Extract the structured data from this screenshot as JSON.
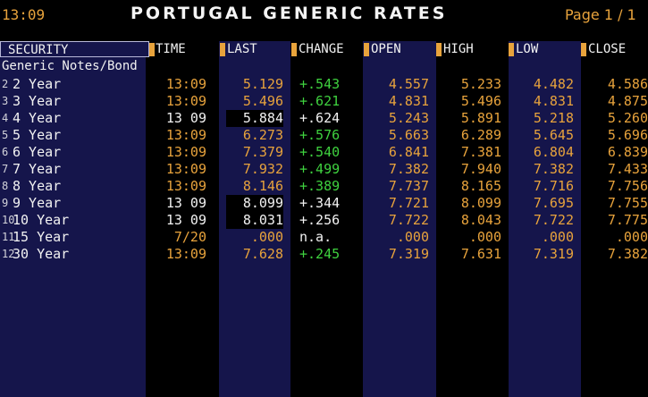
{
  "header": {
    "time": "13:09",
    "title": "PORTUGAL GENERIC RATES",
    "page": "Page 1 / 1"
  },
  "columns": [
    "SECURITY",
    "TIME",
    "LAST",
    "CHANGE",
    "OPEN",
    "HIGH",
    "LOW",
    "CLOSE"
  ],
  "group_label": "Generic Notes/Bond",
  "rows": [
    {
      "num": "2",
      "security": "2 Year",
      "time": "13:09",
      "last": "5.129",
      "change": "+.543",
      "open": "4.557",
      "high": "5.233",
      "low": "4.482",
      "close": "4.586",
      "time_color": "y",
      "last_color": "y",
      "change_color": "g",
      "last_black": false
    },
    {
      "num": "3",
      "security": "3 Year",
      "time": "13:09",
      "last": "5.496",
      "change": "+.621",
      "open": "4.831",
      "high": "5.496",
      "low": "4.831",
      "close": "4.875",
      "time_color": "y",
      "last_color": "y",
      "change_color": "g",
      "last_black": false
    },
    {
      "num": "4",
      "security": "4 Year",
      "time": "13 09",
      "last": "5.884",
      "change": "+.624",
      "open": "5.243",
      "high": "5.891",
      "low": "5.218",
      "close": "5.260",
      "time_color": "w",
      "last_color": "w",
      "change_color": "w",
      "last_black": true
    },
    {
      "num": "5",
      "security": "5 Year",
      "time": "13:09",
      "last": "6.273",
      "change": "+.576",
      "open": "5.663",
      "high": "6.289",
      "low": "5.645",
      "close": "5.696",
      "time_color": "y",
      "last_color": "y",
      "change_color": "g",
      "last_black": false
    },
    {
      "num": "6",
      "security": "6 Year",
      "time": "13:09",
      "last": "7.379",
      "change": "+.540",
      "open": "6.841",
      "high": "7.381",
      "low": "6.804",
      "close": "6.839",
      "time_color": "y",
      "last_color": "y",
      "change_color": "g",
      "last_black": false
    },
    {
      "num": "7",
      "security": "7 Year",
      "time": "13:09",
      "last": "7.932",
      "change": "+.499",
      "open": "7.382",
      "high": "7.940",
      "low": "7.382",
      "close": "7.433",
      "time_color": "y",
      "last_color": "y",
      "change_color": "g",
      "last_black": false
    },
    {
      "num": "8",
      "security": "8 Year",
      "time": "13:09",
      "last": "8.146",
      "change": "+.389",
      "open": "7.737",
      "high": "8.165",
      "low": "7.716",
      "close": "7.756",
      "time_color": "y",
      "last_color": "y",
      "change_color": "g",
      "last_black": false
    },
    {
      "num": "9",
      "security": "9 Year",
      "time": "13 09",
      "last": "8.099",
      "change": "+.344",
      "open": "7.721",
      "high": "8.099",
      "low": "7.695",
      "close": "7.755",
      "time_color": "w",
      "last_color": "w",
      "change_color": "w",
      "last_black": true
    },
    {
      "num": "10",
      "security": "10 Year",
      "time": "13 09",
      "last": "8.031",
      "change": "+.256",
      "open": "7.722",
      "high": "8.043",
      "low": "7.722",
      "close": "7.775",
      "time_color": "w",
      "last_color": "w",
      "change_color": "w",
      "last_black": true
    },
    {
      "num": "11",
      "security": "15 Year",
      "time": "7/20",
      "last": ".000",
      "change": "n.a.",
      "open": ".000",
      "high": ".000",
      "low": ".000",
      "close": ".000",
      "time_color": "y",
      "last_color": "y",
      "change_color": "w",
      "last_black": false
    },
    {
      "num": "12",
      "security": "30 Year",
      "time": "13:09",
      "last": "7.628",
      "change": "+.245",
      "open": "7.319",
      "high": "7.631",
      "low": "7.319",
      "close": "7.382",
      "time_color": "y",
      "last_color": "y",
      "change_color": "g",
      "last_black": false
    }
  ]
}
